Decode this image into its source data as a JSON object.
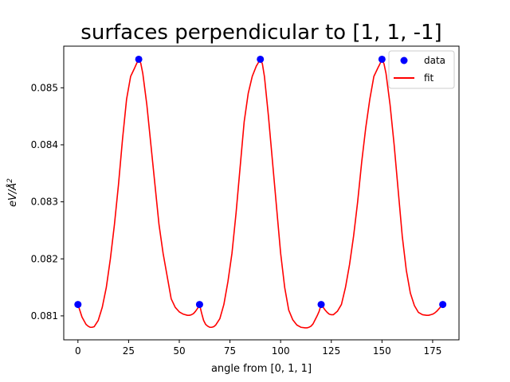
{
  "chart_data": {
    "type": "scatter",
    "title": "surfaces perpendicular to [1, 1, -1]",
    "xlabel": "angle from [0, 1, 1]",
    "ylabel_base": "eV/",
    "ylabel_unit": "Å",
    "ylabel_exp": "2",
    "xlim": [
      -7,
      188
    ],
    "ylim": [
      0.08058,
      0.08573
    ],
    "xticks": [
      0,
      25,
      50,
      75,
      100,
      125,
      150,
      175
    ],
    "yticks": [
      0.081,
      0.082,
      0.083,
      0.084,
      0.085
    ],
    "ytick_labels": [
      "0.081",
      "0.082",
      "0.083",
      "0.084",
      "0.085"
    ],
    "grid": false,
    "legend": {
      "position": "top-right",
      "entries": [
        {
          "name": "data",
          "style": "marker",
          "color": "#0000ff"
        },
        {
          "name": "fit",
          "style": "line",
          "color": "#ff0000"
        }
      ]
    },
    "series": [
      {
        "name": "data",
        "kind": "scatter",
        "color": "#0000ff",
        "x": [
          0,
          30,
          60,
          90,
          120,
          150,
          180
        ],
        "y": [
          0.0812,
          0.0855,
          0.0812,
          0.0855,
          0.0812,
          0.0855,
          0.0812
        ]
      },
      {
        "name": "fit",
        "kind": "line",
        "color": "#ff0000",
        "x": [
          0,
          2,
          4,
          5,
          6,
          7,
          8,
          10,
          12,
          14,
          16,
          18,
          20,
          22,
          24,
          26,
          28,
          29,
          30,
          31,
          32,
          34,
          36,
          38,
          40,
          42,
          44,
          46,
          48,
          50,
          52,
          54,
          55,
          56,
          57,
          58,
          59,
          60,
          61,
          62,
          63,
          64,
          65,
          66,
          67,
          68,
          70,
          72,
          74,
          76,
          78,
          80,
          82,
          84,
          86,
          88,
          89,
          90,
          91,
          92,
          94,
          96,
          98,
          100,
          102,
          104,
          106,
          108,
          110,
          112,
          113,
          114,
          115,
          116,
          117,
          118,
          119,
          120,
          121,
          122,
          123,
          124,
          125,
          126,
          128,
          130,
          132,
          134,
          136,
          138,
          140,
          142,
          144,
          146,
          148,
          149,
          150,
          151,
          152,
          154,
          156,
          158,
          160,
          162,
          164,
          166,
          168,
          170,
          172,
          173,
          174,
          175,
          176,
          177,
          178,
          179,
          180
        ],
        "y": [
          0.0812,
          0.08098,
          0.08085,
          0.08082,
          0.0808,
          0.0808,
          0.08081,
          0.08092,
          0.08115,
          0.0815,
          0.082,
          0.0826,
          0.0833,
          0.0841,
          0.0848,
          0.0852,
          0.08535,
          0.08543,
          0.0855,
          0.08543,
          0.08525,
          0.0847,
          0.084,
          0.0833,
          0.0826,
          0.0821,
          0.0817,
          0.0813,
          0.08115,
          0.08107,
          0.08103,
          0.08101,
          0.08101,
          0.08102,
          0.08104,
          0.08108,
          0.08113,
          0.0812,
          0.08105,
          0.08092,
          0.08085,
          0.08082,
          0.0808,
          0.0808,
          0.08081,
          0.08084,
          0.08095,
          0.0812,
          0.0816,
          0.0821,
          0.0828,
          0.0836,
          0.0844,
          0.0849,
          0.0852,
          0.08538,
          0.08544,
          0.0855,
          0.08542,
          0.0852,
          0.0845,
          0.0837,
          0.0829,
          0.0821,
          0.0815,
          0.0811,
          0.08093,
          0.08084,
          0.0808,
          0.08079,
          0.08079,
          0.0808,
          0.08082,
          0.08086,
          0.08093,
          0.081,
          0.08108,
          0.0812,
          0.08115,
          0.0811,
          0.08106,
          0.08103,
          0.08102,
          0.08102,
          0.08108,
          0.0812,
          0.0815,
          0.0819,
          0.0824,
          0.083,
          0.0837,
          0.0843,
          0.0848,
          0.0852,
          0.08535,
          0.08542,
          0.0855,
          0.08542,
          0.08525,
          0.0847,
          0.084,
          0.0832,
          0.0824,
          0.0818,
          0.0814,
          0.08118,
          0.08106,
          0.08102,
          0.08101,
          0.08101,
          0.08102,
          0.08103,
          0.08105,
          0.08108,
          0.08112,
          0.08116,
          0.0812
        ]
      }
    ]
  }
}
